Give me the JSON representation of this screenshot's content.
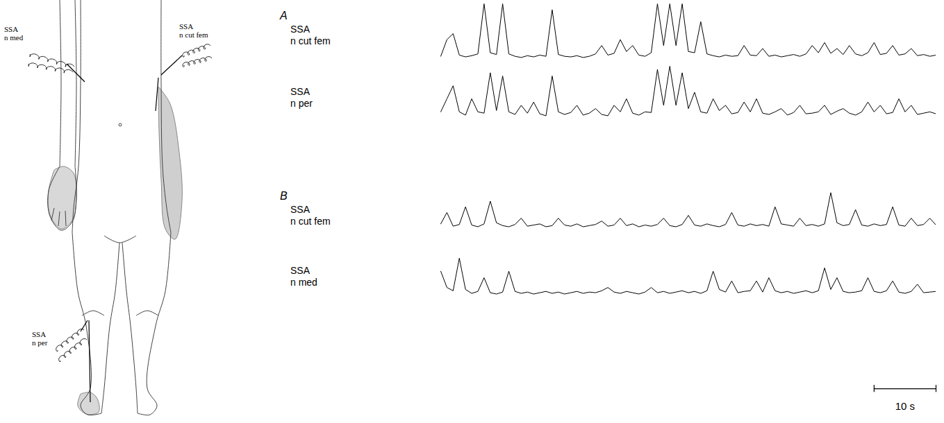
{
  "diagram": {
    "electrodes": [
      {
        "label": "SSA n med"
      },
      {
        "label": "SSA n cut fem"
      },
      {
        "label": "SSA n per"
      }
    ]
  },
  "scale_bar": {
    "value": 10,
    "label": "10 s"
  },
  "chart_data": [
    {
      "type": "line",
      "title": "A",
      "tick_labels": false,
      "xlim": [
        0,
        80
      ],
      "ylim": [
        0,
        10
      ],
      "x": [
        0,
        1,
        2,
        3,
        4,
        5,
        6,
        7,
        8,
        9,
        10,
        11,
        12,
        13,
        14,
        15,
        16,
        17,
        18,
        19,
        20,
        21,
        22,
        23,
        24,
        25,
        26,
        27,
        28,
        29,
        30,
        31,
        32,
        33,
        34,
        35,
        36,
        37,
        38,
        39,
        40,
        41,
        42,
        43,
        44,
        45,
        46,
        47,
        48,
        49,
        50,
        51,
        52,
        53,
        54,
        55,
        56,
        57,
        58,
        59,
        60,
        61,
        62,
        63,
        64,
        65,
        66,
        67,
        68,
        69,
        70,
        71,
        72,
        73,
        74,
        75,
        76,
        77,
        78,
        79,
        80
      ],
      "series": [
        {
          "name": "SSA n cut fem",
          "color": "#000000",
          "values": [
            1.2,
            4,
            5,
            1.4,
            1.1,
            1.3,
            1.6,
            10,
            1.8,
            1.5,
            10,
            1.6,
            1.2,
            1.0,
            1.3,
            1.1,
            1.4,
            1.2,
            9,
            1.5,
            1.2,
            1.1,
            1.3,
            1.0,
            1.2,
            1.6,
            3,
            1.4,
            1.7,
            4,
            2,
            3,
            1.4,
            1.2,
            1.8,
            10,
            3,
            10,
            3,
            10,
            2,
            1.8,
            7,
            1.6,
            1.3,
            1.1,
            1.4,
            1.2,
            1.3,
            3,
            1.4,
            1.3,
            2.5,
            1.2,
            1.4,
            1.1,
            1.3,
            1.5,
            1.2,
            1.6,
            3,
            1.8,
            3.5,
            1.7,
            2.5,
            1.5,
            3,
            1.6,
            1.3,
            1.8,
            3.5,
            1.5,
            1.7,
            3,
            1.4,
            1.6,
            2.5,
            1.3,
            1.5,
            1.2,
            1.4
          ]
        },
        {
          "name": "SSA n per",
          "color": "#000000",
          "values": [
            3,
            5,
            7,
            3,
            2.5,
            5,
            3,
            2.8,
            9,
            3.2,
            8.5,
            3,
            2.6,
            4,
            2.8,
            4.5,
            2.7,
            2.4,
            8.5,
            3,
            2.6,
            2.9,
            4,
            2.5,
            2.8,
            3.5,
            2.6,
            2.4,
            4,
            3,
            5,
            2.8,
            2.5,
            3,
            2.9,
            9.5,
            4,
            10,
            4,
            9,
            3.5,
            6,
            3,
            2.8,
            5,
            3.2,
            4,
            2.7,
            2.9,
            4.5,
            3,
            5,
            2.8,
            2.6,
            3,
            3.5,
            2.5,
            2.9,
            4,
            2.7,
            2.8,
            3,
            4,
            2.6,
            3.1,
            3.5,
            2.8,
            2.5,
            3,
            4.5,
            3,
            4,
            2.7,
            2.9,
            5,
            3,
            4,
            2.6,
            2.8,
            3,
            2.7
          ]
        }
      ]
    },
    {
      "type": "line",
      "title": "B",
      "tick_labels": false,
      "xlim": [
        0,
        80
      ],
      "ylim": [
        0,
        10
      ],
      "x": [
        0,
        1,
        2,
        3,
        4,
        5,
        6,
        7,
        8,
        9,
        10,
        11,
        12,
        13,
        14,
        15,
        16,
        17,
        18,
        19,
        20,
        21,
        22,
        23,
        24,
        25,
        26,
        27,
        28,
        29,
        30,
        31,
        32,
        33,
        34,
        35,
        36,
        37,
        38,
        39,
        40,
        41,
        42,
        43,
        44,
        45,
        46,
        47,
        48,
        49,
        50,
        51,
        52,
        53,
        54,
        55,
        56,
        57,
        58,
        59,
        60,
        61,
        62,
        63,
        64,
        65,
        66,
        67,
        68,
        69,
        70,
        71,
        72,
        73,
        74,
        75,
        76,
        77,
        78,
        79,
        80
      ],
      "series": [
        {
          "name": "SSA n cut fem",
          "color": "#000000",
          "values": [
            3,
            5,
            2.6,
            2.9,
            6,
            2.8,
            2.5,
            3,
            7,
            3.2,
            2.7,
            2.5,
            2.9,
            4,
            2.6,
            2.8,
            3,
            2.5,
            2.7,
            4,
            2.8,
            2.6,
            3,
            2.5,
            2.7,
            2.9,
            3.5,
            2.6,
            2.8,
            4,
            2.7,
            3,
            2.5,
            2.8,
            2.6,
            2.9,
            4,
            2.7,
            2.5,
            2.9,
            4.5,
            2.8,
            2.6,
            3,
            2.7,
            2.5,
            2.9,
            5,
            2.8,
            2.6,
            3,
            2.7,
            2.9,
            2.6,
            6,
            3,
            2.8,
            2.6,
            4,
            2.7,
            2.9,
            2.6,
            3,
            8.5,
            3.2,
            2.7,
            2.9,
            5.5,
            2.8,
            2.6,
            3,
            2.7,
            2.9,
            6,
            2.8,
            2.6,
            4,
            2.7,
            2.9,
            4,
            2.8
          ]
        },
        {
          "name": "SSA n med",
          "color": "#000000",
          "values": [
            6,
            3.5,
            3,
            8,
            3.2,
            2.6,
            2.9,
            5,
            2.7,
            2.5,
            2.8,
            6,
            2.9,
            2.6,
            2.8,
            2.5,
            2.7,
            2.9,
            2.6,
            2.8,
            2.5,
            2.7,
            2.9,
            2.6,
            2.8,
            2.7,
            3,
            3.5,
            2.8,
            2.6,
            2.9,
            2.7,
            2.5,
            2.8,
            3.5,
            2.7,
            2.9,
            2.6,
            2.8,
            3,
            2.7,
            2.9,
            2.6,
            3,
            6,
            3.2,
            2.8,
            4.5,
            2.7,
            2.9,
            3,
            4.5,
            2.8,
            5,
            3,
            2.7,
            2.9,
            2.6,
            2.8,
            3,
            2.7,
            3,
            6.5,
            3.2,
            5,
            2.9,
            2.7,
            2.8,
            3,
            5,
            2.9,
            2.7,
            3,
            4.5,
            2.8,
            2.6,
            2.9,
            4,
            2.7,
            2.8,
            2.9
          ]
        }
      ]
    }
  ]
}
